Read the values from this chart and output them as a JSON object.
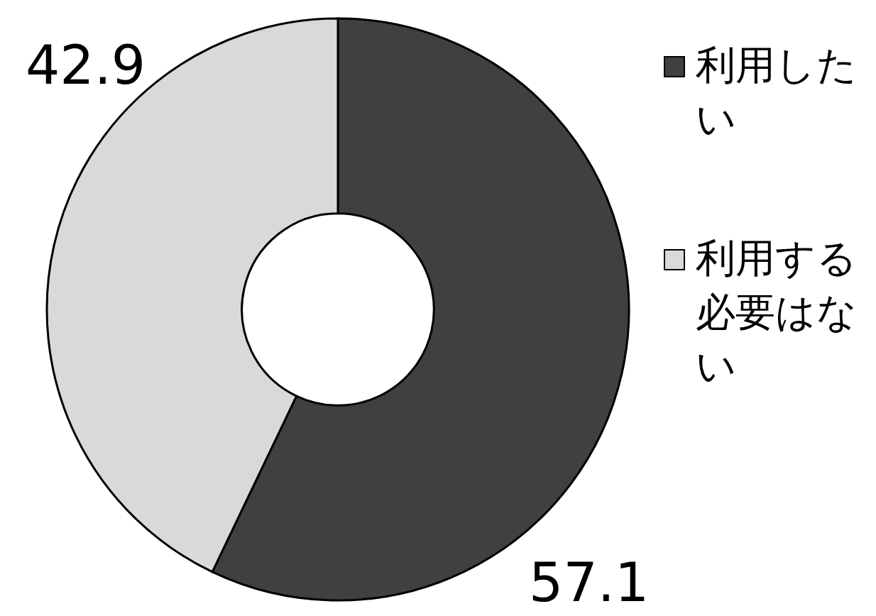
{
  "chart_data": {
    "type": "donut",
    "categories": [
      "利用したい",
      "利用する必要はない"
    ],
    "values": [
      57.1,
      42.9
    ],
    "colors": [
      "#404040",
      "#d9d9d9"
    ],
    "data_labels": true,
    "legend": "right"
  }
}
